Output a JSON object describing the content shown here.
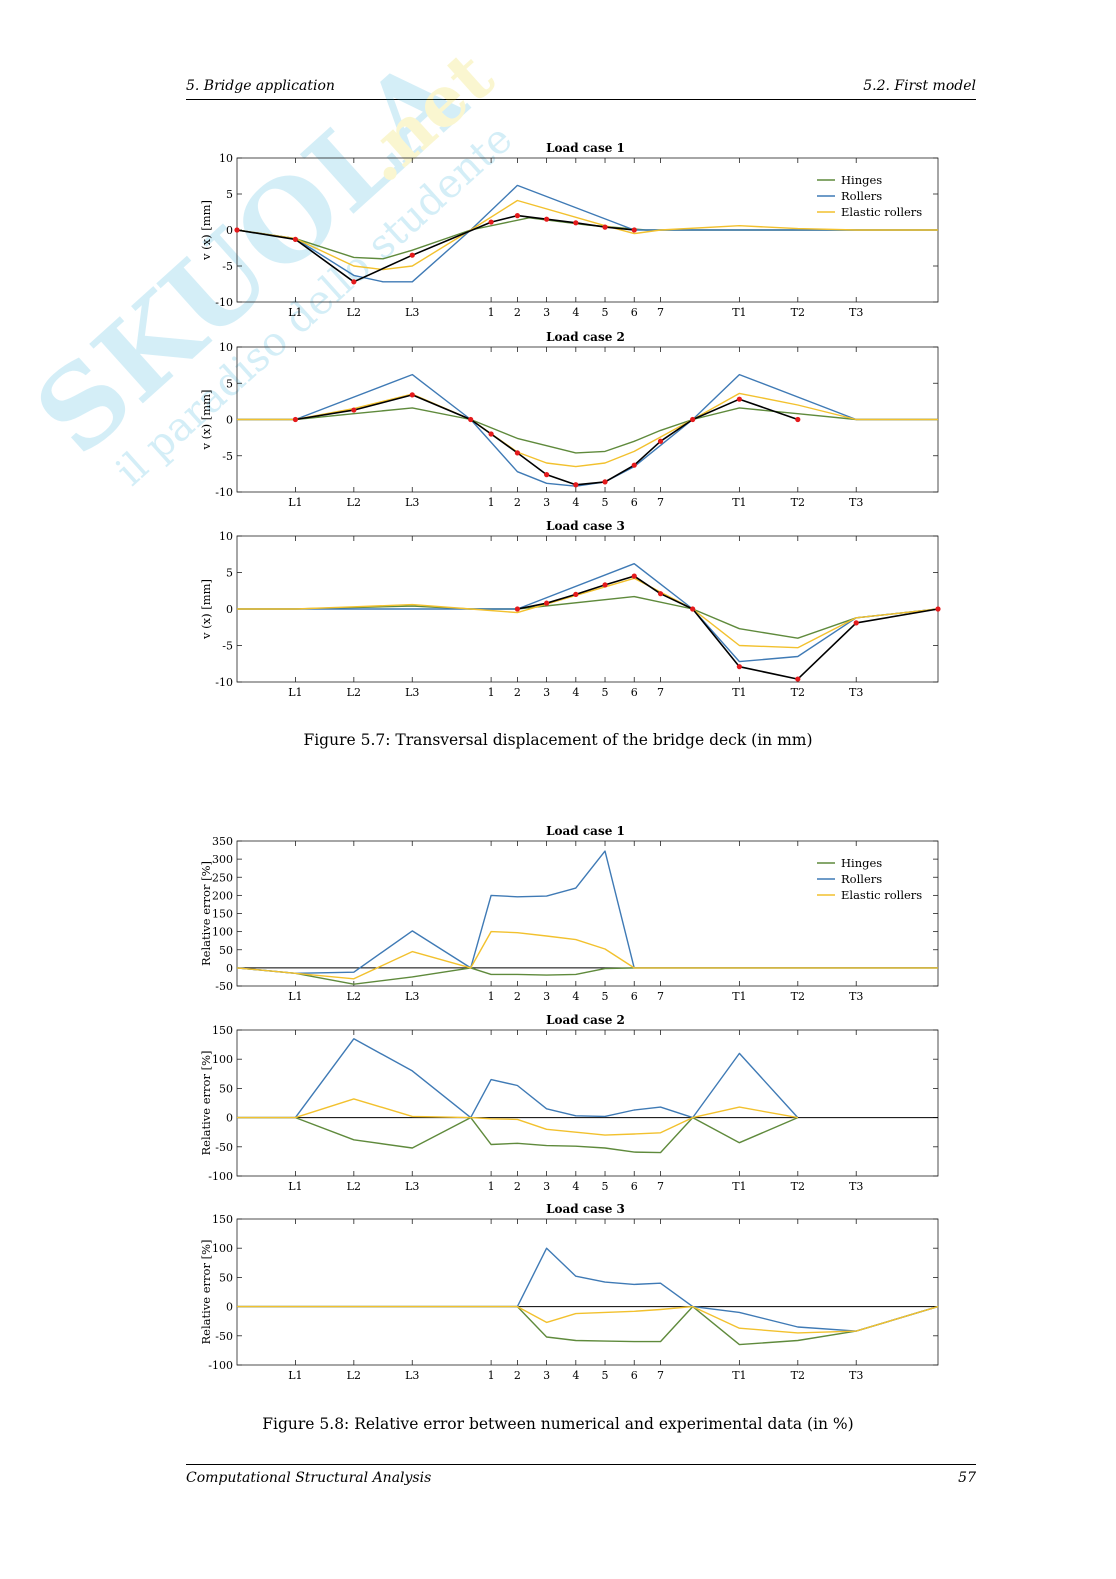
{
  "header": {
    "left": "5. Bridge application",
    "right": "5.2. First model"
  },
  "footer": {
    "left": "Computational Structural Analysis",
    "right": "57"
  },
  "watermark": {
    "brand": "SKUOLA.net",
    "tagline": "il paradiso dello studente"
  },
  "figures": {
    "fig57_caption": "Figure 5.7: Transversal displacement of the bridge deck (in mm)",
    "fig58_caption": "Figure 5.8: Relative error between numerical and experimental data (in %)"
  },
  "chart_data": [
    {
      "type": "line",
      "title": "Load case 1",
      "ylabel": "v (x) [mm]",
      "ylim": [
        -10,
        10
      ],
      "yticks": [
        "10",
        "5",
        "0",
        "-5",
        "-10"
      ],
      "xlim": [
        0,
        12
      ],
      "ticks": {
        "labels": [
          "L1",
          "L2",
          "L3",
          "1",
          "2",
          "3",
          "4",
          "5",
          "6",
          "7",
          "T1",
          "T2",
          "T3"
        ],
        "x": [
          1,
          2,
          3,
          4.35,
          4.8,
          5.3,
          5.8,
          6.3,
          6.8,
          7.25,
          8.6,
          9.6,
          10.6
        ]
      },
      "legend": [
        "Hinges",
        "Rollers",
        "Elastic rollers"
      ],
      "colors": {
        "hinges": "#5f8a3c",
        "rollers": "#3f7ab5",
        "elastic": "#f2c12e",
        "experimental": "#000000",
        "markers": "#e41a1c"
      },
      "series": [
        {
          "name": "Hinges",
          "x": [
            0,
            1,
            2,
            2.5,
            3,
            4,
            5,
            6,
            7,
            8,
            9,
            10,
            11,
            12
          ],
          "y": [
            0,
            -1.2,
            -3.8,
            -4,
            -2.8,
            0,
            1.7,
            0.7,
            0,
            0,
            0,
            0,
            0,
            0
          ]
        },
        {
          "name": "Rollers",
          "x": [
            0,
            1,
            2,
            2.5,
            3,
            4,
            4.8,
            6.8,
            7.25,
            8,
            9,
            10,
            11,
            12
          ],
          "y": [
            0,
            -1.2,
            -6.3,
            -7.2,
            -7.2,
            0,
            6.2,
            0,
            0,
            0,
            0,
            0,
            0,
            0
          ]
        },
        {
          "name": "Elastic rollers",
          "x": [
            0,
            1,
            2,
            2.5,
            3,
            4,
            4.8,
            6.3,
            6.8,
            7.25,
            8.6,
            9.6,
            10.6,
            12
          ],
          "y": [
            0,
            -1.2,
            -5,
            -5.5,
            -5,
            0,
            4.1,
            0.6,
            -0.5,
            0,
            0.6,
            0.2,
            0,
            0
          ]
        },
        {
          "x": [
            0,
            1,
            2,
            3,
            4.35,
            4.8,
            5.3,
            5.8,
            6.3,
            6.8
          ],
          "y": [
            0,
            -1.3,
            -7.2,
            -3.5,
            1.1,
            2,
            1.5,
            1,
            0.4,
            0
          ]
        }
      ]
    },
    {
      "type": "line",
      "title": "Load case 2",
      "ylabel": "v (x) [mm]",
      "ylim": [
        -10,
        10
      ],
      "yticks": [
        "10",
        "5",
        "0",
        "-5",
        "-10"
      ],
      "xlim": [
        0,
        12
      ],
      "ticks": {
        "labels": [
          "L1",
          "L2",
          "L3",
          "1",
          "2",
          "3",
          "4",
          "5",
          "6",
          "7",
          "T1",
          "T2",
          "T3"
        ],
        "x": [
          1,
          2,
          3,
          4.35,
          4.8,
          5.3,
          5.8,
          6.3,
          6.8,
          7.25,
          8.6,
          9.6,
          10.6
        ]
      },
      "colors": {
        "hinges": "#5f8a3c",
        "rollers": "#3f7ab5",
        "elastic": "#f2c12e",
        "experimental": "#000000",
        "markers": "#e41a1c"
      },
      "series": [
        {
          "name": "Hinges",
          "x": [
            0,
            1,
            2,
            3,
            4,
            4.8,
            5.8,
            6.3,
            6.8,
            7.25,
            7.8,
            8.6,
            9.6,
            10.6,
            12
          ],
          "y": [
            0,
            0,
            0.8,
            1.6,
            0,
            -2.6,
            -4.6,
            -4.4,
            -3,
            -1.5,
            0,
            1.6,
            0.8,
            0,
            0
          ]
        },
        {
          "name": "Rollers",
          "x": [
            0,
            1,
            3,
            4,
            4.8,
            5.3,
            5.8,
            6.3,
            6.8,
            7.8,
            8.6,
            10.6,
            12
          ],
          "y": [
            0,
            0,
            6.2,
            0,
            -7.2,
            -8.8,
            -9.2,
            -8.6,
            -6.5,
            0,
            6.2,
            0,
            0
          ]
        },
        {
          "name": "Elastic rollers",
          "x": [
            0,
            1,
            2,
            3,
            4,
            4.8,
            5.3,
            5.8,
            6.3,
            6.8,
            7.8,
            8.6,
            9.6,
            10.6,
            12
          ],
          "y": [
            0,
            0,
            1.5,
            3.5,
            0,
            -4.5,
            -6,
            -6.5,
            -6,
            -4.4,
            0,
            3.6,
            2,
            0,
            0
          ]
        },
        {
          "x": [
            1,
            2,
            3,
            4,
            4.35,
            4.8,
            5.3,
            5.8,
            6.3,
            6.8,
            7.25,
            7.8,
            8.6,
            9.6
          ],
          "y": [
            0,
            1.3,
            3.4,
            0,
            -2,
            -4.6,
            -7.6,
            -9,
            -8.6,
            -6.3,
            -3,
            0,
            2.8,
            0
          ]
        }
      ]
    },
    {
      "type": "line",
      "title": "Load case 3",
      "ylabel": "v (x) [mm]",
      "ylim": [
        -10,
        10
      ],
      "yticks": [
        "10",
        "5",
        "0",
        "-5",
        "-10"
      ],
      "xlim": [
        0,
        12
      ],
      "ticks": {
        "labels": [
          "L1",
          "L2",
          "L3",
          "1",
          "2",
          "3",
          "4",
          "5",
          "6",
          "7",
          "T1",
          "T2",
          "T3"
        ],
        "x": [
          1,
          2,
          3,
          4.35,
          4.8,
          5.3,
          5.8,
          6.3,
          6.8,
          7.25,
          8.6,
          9.6,
          10.6
        ]
      },
      "colors": {
        "hinges": "#5f8a3c",
        "rollers": "#3f7ab5",
        "elastic": "#f2c12e",
        "experimental": "#000000",
        "markers": "#e41a1c"
      },
      "series": [
        {
          "name": "Hinges",
          "x": [
            0,
            1,
            2,
            3,
            4,
            4.8,
            6.8,
            7.8,
            8.6,
            9.6,
            10.6,
            12
          ],
          "y": [
            0,
            0,
            0.2,
            0.4,
            0,
            0,
            1.7,
            0,
            -2.7,
            -4,
            -1.2,
            0
          ]
        },
        {
          "name": "Rollers",
          "x": [
            0,
            1,
            2,
            3,
            4,
            4.8,
            6.8,
            7.8,
            8.6,
            9.6,
            10.6,
            12
          ],
          "y": [
            0,
            0,
            0,
            0,
            0,
            0,
            6.2,
            0,
            -7.2,
            -6.5,
            -1.2,
            0
          ]
        },
        {
          "name": "Elastic rollers",
          "x": [
            0,
            1,
            2,
            3,
            4,
            4.8,
            6.8,
            7.8,
            8.6,
            9.6,
            10.6,
            12
          ],
          "y": [
            0,
            0,
            0.3,
            0.6,
            0,
            -0.5,
            4.2,
            0,
            -5,
            -5.3,
            -1.2,
            0
          ]
        },
        {
          "x": [
            4.8,
            5.3,
            5.8,
            6.3,
            6.8,
            7.25,
            7.8,
            8.6,
            9.6,
            10.6,
            12
          ],
          "y": [
            0,
            0.8,
            2,
            3.3,
            4.5,
            2.1,
            0,
            -7.9,
            -9.6,
            -1.9,
            0
          ]
        }
      ]
    },
    {
      "type": "line",
      "title": "Load case 1",
      "ylabel": "Relative error [%]",
      "ylim": [
        -50,
        350
      ],
      "yticks": [
        "350",
        "300",
        "250",
        "200",
        "150",
        "100",
        "50",
        "0",
        "-50"
      ],
      "xlim": [
        0,
        12
      ],
      "ticks": {
        "labels": [
          "L1",
          "L2",
          "L3",
          "1",
          "2",
          "3",
          "4",
          "5",
          "6",
          "7",
          "T1",
          "T2",
          "T3"
        ],
        "x": [
          1,
          2,
          3,
          4.35,
          4.8,
          5.3,
          5.8,
          6.3,
          6.8,
          7.25,
          8.6,
          9.6,
          10.6
        ]
      },
      "legend": [
        "Hinges",
        "Rollers",
        "Elastic rollers"
      ],
      "colors": {
        "hinges": "#5f8a3c",
        "rollers": "#3f7ab5",
        "elastic": "#f2c12e",
        "zero": "#000000"
      },
      "series": [
        {
          "name": "Hinges",
          "x": [
            0,
            1,
            2,
            3,
            4,
            4.35,
            4.8,
            5.3,
            5.8,
            6.3,
            6.8,
            12
          ],
          "y": [
            0,
            -15,
            -45,
            -25,
            0,
            -18,
            -18,
            -20,
            -18,
            -2,
            0,
            0
          ]
        },
        {
          "name": "Rollers",
          "x": [
            0,
            1,
            2,
            3,
            4,
            4.35,
            4.8,
            5.3,
            5.8,
            6.3,
            6.8,
            12
          ],
          "y": [
            0,
            -15,
            -12,
            102,
            0,
            200,
            196,
            198,
            220,
            322,
            0,
            0
          ]
        },
        {
          "name": "Elastic rollers",
          "x": [
            0,
            1,
            2,
            3,
            4,
            4.35,
            4.8,
            5.3,
            5.8,
            6.3,
            6.8,
            12
          ],
          "y": [
            0,
            -15,
            -30,
            45,
            0,
            100,
            97,
            88,
            78,
            52,
            0,
            0
          ]
        }
      ]
    },
    {
      "type": "line",
      "title": "Load case 2",
      "ylabel": "Relative error [%]",
      "ylim": [
        -100,
        150
      ],
      "yticks": [
        "150",
        "100",
        "50",
        "0",
        "-50",
        "-100"
      ],
      "xlim": [
        0,
        12
      ],
      "ticks": {
        "labels": [
          "L1",
          "L2",
          "L3",
          "1",
          "2",
          "3",
          "4",
          "5",
          "6",
          "7",
          "T1",
          "T2",
          "T3"
        ],
        "x": [
          1,
          2,
          3,
          4.35,
          4.8,
          5.3,
          5.8,
          6.3,
          6.8,
          7.25,
          8.6,
          9.6,
          10.6
        ]
      },
      "colors": {
        "hinges": "#5f8a3c",
        "rollers": "#3f7ab5",
        "elastic": "#f2c12e",
        "zero": "#000000"
      },
      "series": [
        {
          "name": "Hinges",
          "x": [
            0,
            1,
            2,
            3,
            4,
            4.35,
            4.8,
            5.3,
            5.8,
            6.3,
            6.8,
            7.25,
            7.8,
            8.6,
            9.6
          ],
          "y": [
            0,
            0,
            -38,
            -52,
            0,
            -46,
            -44,
            -48,
            -49,
            -52,
            -59,
            -60,
            0,
            -43,
            0
          ]
        },
        {
          "name": "Rollers",
          "x": [
            0,
            1,
            2,
            3,
            4,
            4.35,
            4.8,
            5.3,
            5.8,
            6.3,
            6.8,
            7.25,
            7.8,
            8.6,
            9.6
          ],
          "y": [
            0,
            0,
            135,
            80,
            0,
            65,
            55,
            15,
            3,
            2,
            13,
            18,
            0,
            110,
            0
          ]
        },
        {
          "name": "Elastic rollers",
          "x": [
            0,
            1,
            2,
            3,
            4,
            4.35,
            4.8,
            5.3,
            5.8,
            6.3,
            6.8,
            7.25,
            7.8,
            8.6,
            9.6
          ],
          "y": [
            0,
            0,
            32,
            2,
            0,
            -2,
            -3,
            -20,
            -25,
            -30,
            -28,
            -26,
            0,
            18,
            0
          ]
        }
      ]
    },
    {
      "type": "line",
      "title": "Load case 3",
      "ylabel": "Relative error [%]",
      "ylim": [
        -100,
        150
      ],
      "yticks": [
        "150",
        "100",
        "50",
        "0",
        "-50",
        "-100"
      ],
      "xlim": [
        0,
        12
      ],
      "ticks": {
        "labels": [
          "L1",
          "L2",
          "L3",
          "1",
          "2",
          "3",
          "4",
          "5",
          "6",
          "7",
          "T1",
          "T2",
          "T3"
        ],
        "x": [
          1,
          2,
          3,
          4.35,
          4.8,
          5.3,
          5.8,
          6.3,
          6.8,
          7.25,
          8.6,
          9.6,
          10.6
        ]
      },
      "colors": {
        "hinges": "#5f8a3c",
        "rollers": "#3f7ab5",
        "elastic": "#f2c12e",
        "zero": "#000000"
      },
      "series": [
        {
          "name": "Hinges",
          "x": [
            0,
            1,
            4.8,
            5.3,
            5.8,
            6.3,
            6.8,
            7.25,
            7.8,
            8.6,
            9.6,
            10.6,
            12
          ],
          "y": [
            0,
            0,
            0,
            -52,
            -58,
            -59,
            -60,
            -60,
            0,
            -65,
            -58,
            -42,
            0
          ]
        },
        {
          "name": "Rollers",
          "x": [
            0,
            1,
            4.8,
            5.3,
            5.8,
            6.3,
            6.8,
            7.25,
            7.8,
            8.6,
            9.6,
            10.6,
            12
          ],
          "y": [
            0,
            0,
            0,
            100,
            52,
            42,
            38,
            40,
            0,
            -10,
            -35,
            -42,
            0
          ]
        },
        {
          "name": "Elastic rollers",
          "x": [
            0,
            1,
            4.8,
            5.3,
            5.8,
            6.3,
            6.8,
            7.25,
            7.8,
            8.6,
            9.6,
            10.6,
            12
          ],
          "y": [
            0,
            0,
            0,
            -27,
            -12,
            -10,
            -8,
            -5,
            0,
            -37,
            -45,
            -42,
            0
          ]
        }
      ]
    }
  ]
}
